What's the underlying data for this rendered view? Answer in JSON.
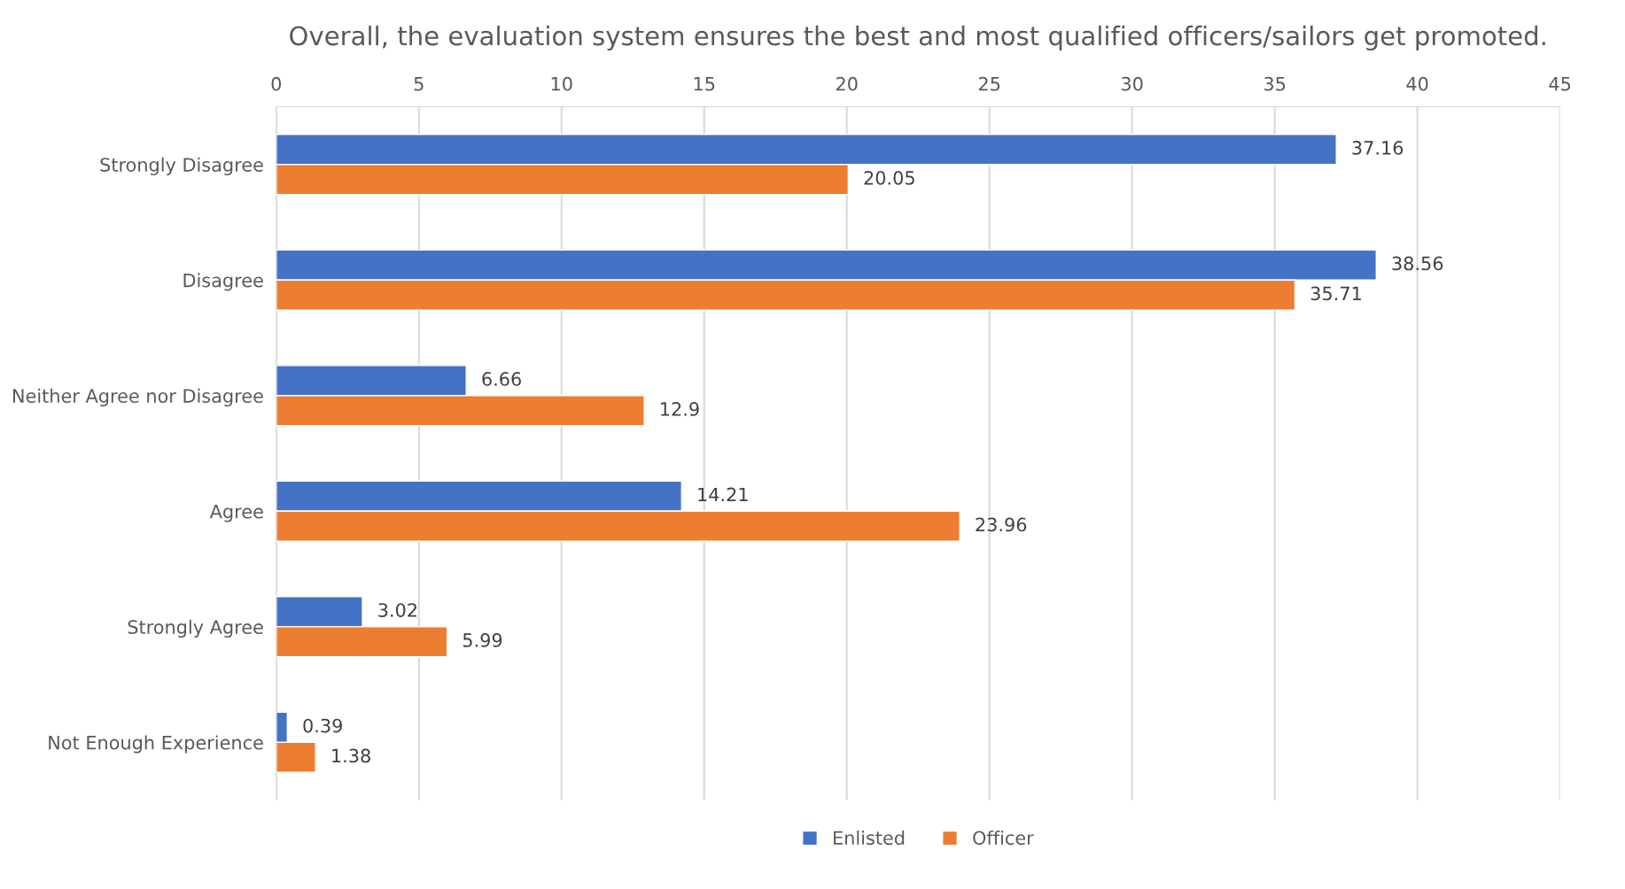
{
  "chart_data": {
    "type": "bar",
    "orientation": "horizontal",
    "title": "Overall, the evaluation system ensures the best and most qualified officers/sailors get promoted.",
    "categories": [
      "Strongly Disagree",
      "Disagree",
      "Neither Agree nor Disagree",
      "Agree",
      "Strongly Agree",
      "Not Enough Experience"
    ],
    "series": [
      {
        "name": "Enlisted",
        "color": "#4472c4",
        "values": [
          37.16,
          38.56,
          6.66,
          14.21,
          3.02,
          0.39
        ]
      },
      {
        "name": "Officer",
        "color": "#ed7d31",
        "values": [
          20.05,
          35.71,
          12.9,
          23.96,
          5.99,
          1.38
        ]
      }
    ],
    "xlim": [
      0,
      45
    ],
    "xticks": [
      0,
      5,
      10,
      15,
      20,
      25,
      30,
      35,
      40,
      45
    ],
    "grid": "x",
    "legend": "bottom",
    "data_labels": true
  }
}
